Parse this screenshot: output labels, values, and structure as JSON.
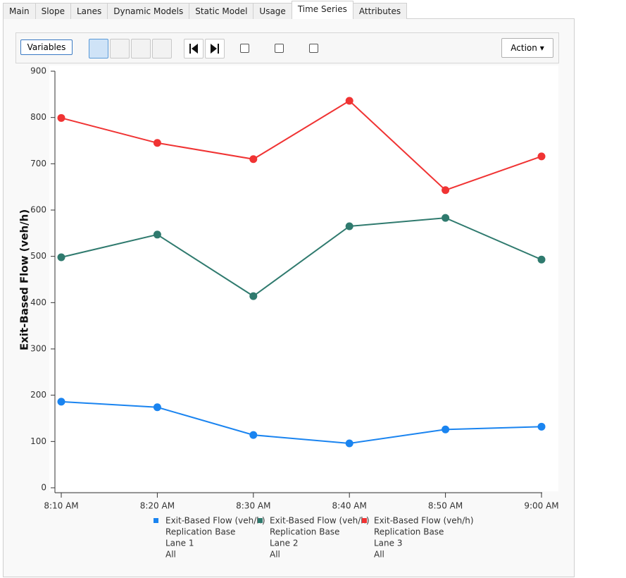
{
  "tabs": [
    "Main",
    "Slope",
    "Lanes",
    "Dynamic Models",
    "Static Model",
    "Usage",
    "Time Series",
    "Attributes"
  ],
  "active_tab": 6,
  "toolbar": {
    "variables_button": "Variables",
    "action_button": "Action"
  },
  "chart_data": {
    "type": "line",
    "y_label": "Exit-Based Flow (veh/h)",
    "categories": [
      "8:10 AM",
      "8:20 AM",
      "8:30 AM",
      "8:40 AM",
      "8:50 AM",
      "9:00 AM"
    ],
    "ylim": [
      0,
      900
    ],
    "yticks": [
      0,
      100,
      200,
      300,
      400,
      500,
      600,
      700,
      800,
      900
    ],
    "series": [
      {
        "name": "Exit-Based Flow (veh/h)",
        "details": [
          "Replication Base",
          "Lane 1",
          "All"
        ],
        "color": "#1a84f0",
        "values": [
          186,
          174,
          114,
          96,
          126,
          132
        ]
      },
      {
        "name": "Exit-Based Flow (veh/h)",
        "details": [
          "Replication Base",
          "Lane 2",
          "All"
        ],
        "color": "#2f7a6e",
        "values": [
          498,
          547,
          414,
          565,
          583,
          493
        ]
      },
      {
        "name": "Exit-Based Flow (veh/h)",
        "details": [
          "Replication Base",
          "Lane 3",
          "All"
        ],
        "color": "#f03333",
        "values": [
          799,
          745,
          710,
          836,
          643,
          716
        ]
      }
    ]
  }
}
